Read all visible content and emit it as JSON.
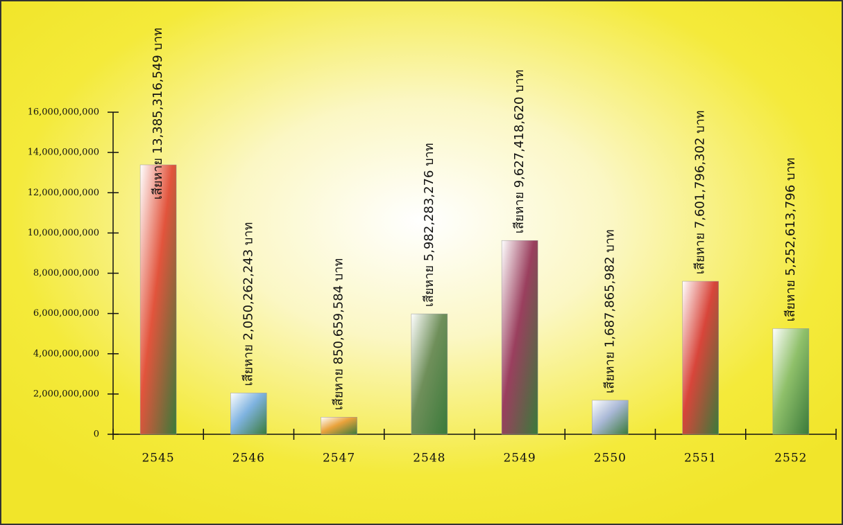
{
  "chart_data": {
    "type": "bar",
    "categories": [
      "2545",
      "2546",
      "2547",
      "2548",
      "2549",
      "2550",
      "2551",
      "2552"
    ],
    "values": [
      13385316549,
      2050262243,
      850659584,
      5982283276,
      9627418620,
      1687865982,
      7601796302,
      5252613796
    ],
    "value_labels": [
      "เสียหาย 13,385,316,549 บาท",
      "เสียหาย 2,050,262,243 บาท",
      "เสียหาย 850,659,584 บาท",
      "เสียหาย 5,982,283,276 บาท",
      "เสียหาย 9,627,418,620 บาท",
      "เสียหาย 1,687,865,982 บาท",
      "เสียหาย 7,601,796,302 บาท",
      "เสียหาย 5,252,613,796 บาท"
    ],
    "colors": [
      "#e2543c",
      "#7fb3e0",
      "#e9a23b",
      "#6f8f5a",
      "#9a3f5e",
      "#a9b8d6",
      "#d8453a",
      "#8fc06a"
    ],
    "ylim": [
      0,
      16000000000
    ],
    "yticks": [
      {
        "value": 0,
        "label": "0"
      },
      {
        "value": 2000000000,
        "label": "2,000,000,000"
      },
      {
        "value": 4000000000,
        "label": "4,000,000,000"
      },
      {
        "value": 6000000000,
        "label": "6,000,000,000"
      },
      {
        "value": 8000000000,
        "label": "8,000,000,000"
      },
      {
        "value": 10000000000,
        "label": "10,000,000,000"
      },
      {
        "value": 12000000000,
        "label": "12,000,000,000"
      },
      {
        "value": 14000000000,
        "label": "14,000,000,000"
      },
      {
        "value": 16000000000,
        "label": "16,000,000,000"
      }
    ]
  }
}
